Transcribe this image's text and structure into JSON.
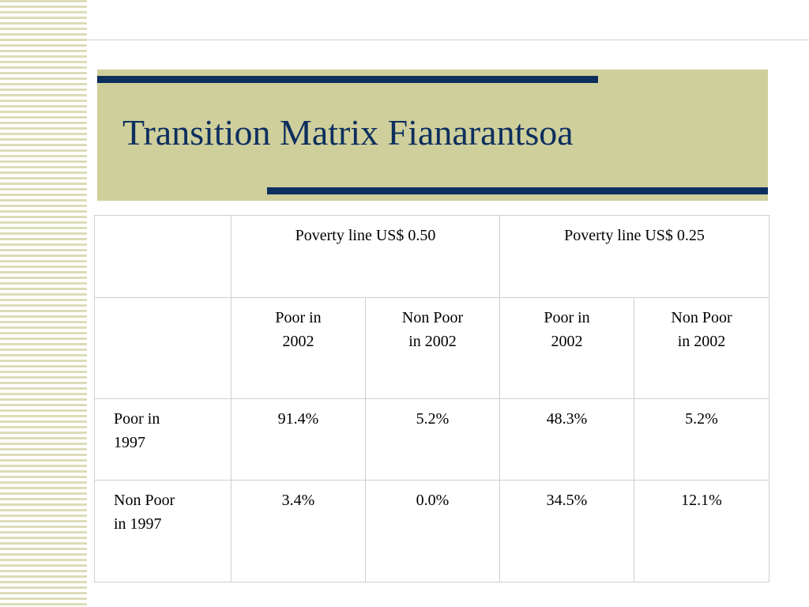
{
  "slide": {
    "title": "Transition Matrix Fianarantsoa"
  },
  "colors": {
    "title_text": "#0d2f5e",
    "accent_bar": "#0d2f5e",
    "title_box": "#cfcf9c",
    "stripes": "#dcdcb8"
  },
  "table": {
    "group_headers": [
      "Poverty line US$ 0.50",
      "Poverty line US$ 0.25"
    ],
    "sub_headers": [
      "Poor in\n2002",
      "Non Poor\nin 2002",
      "Poor in\n2002",
      "Non Poor\nin 2002"
    ],
    "rows": [
      {
        "label": "Poor in\n1997",
        "values": [
          "91.4%",
          "5.2%",
          "48.3%",
          "5.2%"
        ]
      },
      {
        "label": "Non Poor\nin 1997",
        "values": [
          "3.4%",
          "0.0%",
          "34.5%",
          "12.1%"
        ]
      }
    ]
  }
}
